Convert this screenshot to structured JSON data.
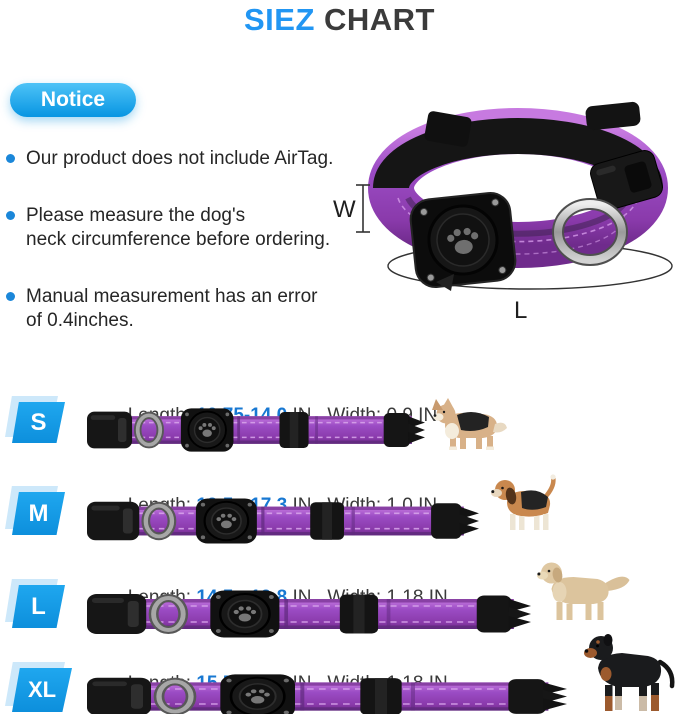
{
  "title": {
    "accent": "SIEZ",
    "rest": " CHART"
  },
  "notice": {
    "label": "Notice",
    "bullets": [
      "Our product does not include AirTag.",
      "Please measure the dog's\nneck circumference before ordering.",
      "Manual measurement has an error\nof 0.4inches."
    ]
  },
  "hero": {
    "width_label": "W",
    "length_label": "L"
  },
  "sizes": [
    {
      "code": "S",
      "length_label": "Length: ",
      "length_range": "10.75-14.0",
      "after_range": " IN, ",
      "width_label": " Width: ",
      "width_value": "0.9 IN",
      "dog": "corgi"
    },
    {
      "code": "M",
      "length_label": "Length: ",
      "length_range": "12.5 - 17.3",
      "after_range": " IN, ",
      "width_label": " Width: ",
      "width_value": "1.0 IN",
      "dog": "beagle"
    },
    {
      "code": "L",
      "length_label": "Length: ",
      "length_range": "14.5 - 19.8",
      "after_range": " IN, ",
      "width_label": " Width: ",
      "width_value": "1.18 IN",
      "dog": "golden-retriever"
    },
    {
      "code": "XL",
      "length_label": "Length: ",
      "length_range": "15.5 - 22.0",
      "after_range": " IN, ",
      "width_label": " Width: ",
      "width_value": "1.18 IN",
      "dog": "rottweiler"
    }
  ],
  "colors": {
    "accent_blue": "#2196f3",
    "range_blue": "#1878d2",
    "badge_top": "#4ec3f7",
    "badge_bottom": "#0795e2",
    "collar_purple": "#9b4cc4",
    "text_dark": "#2f2f2f"
  }
}
